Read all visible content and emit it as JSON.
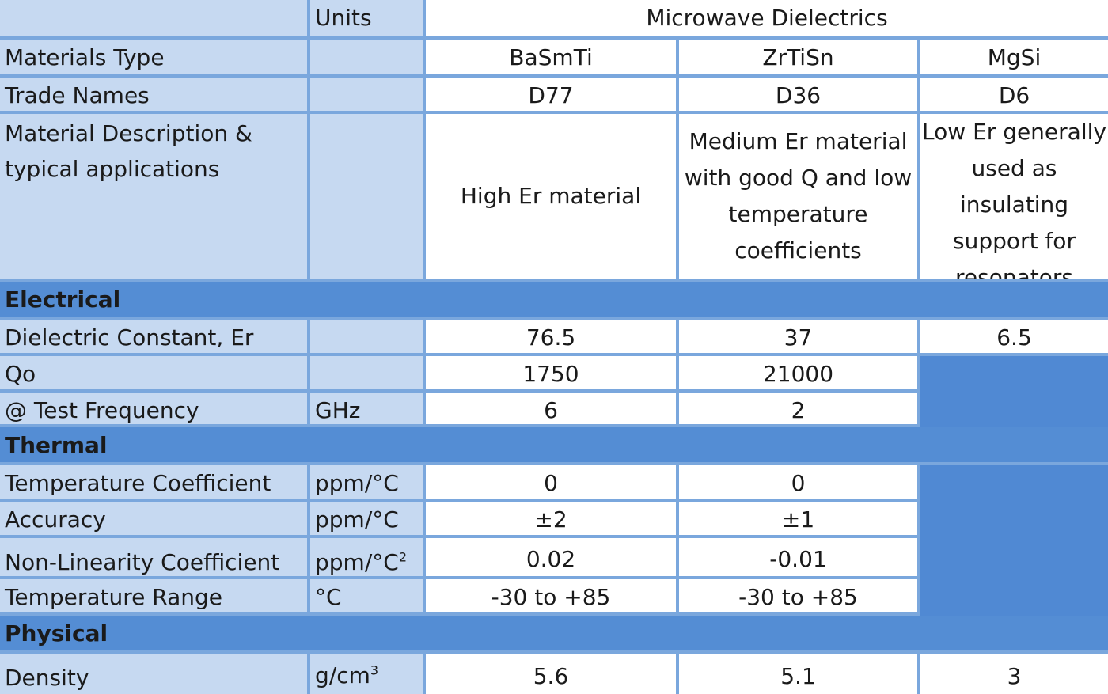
{
  "header": {
    "units_label": "Units",
    "group_title": "Microwave Dielectrics"
  },
  "rows": {
    "materials_type": {
      "label": "Materials Type",
      "values": [
        "BaSmTi",
        "ZrTiSn",
        "MgSi"
      ]
    },
    "trade_names": {
      "label": "Trade Names",
      "values": [
        "D77",
        "D36",
        "D6"
      ]
    },
    "description": {
      "label": "Material Description & typical applications",
      "values": [
        "High Er material",
        "Medium Er material with good Q and low temperature coefficients",
        "Low Er generally used as insulating support for resonators"
      ]
    }
  },
  "sections": {
    "electrical": "Electrical",
    "thermal": "Thermal",
    "physical": "Physical"
  },
  "electrical": {
    "dielectric_constant": {
      "label": "Dielectric Constant, Er",
      "unit": "",
      "values": [
        "76.5",
        "37",
        "6.5"
      ]
    },
    "qo": {
      "label": "Qo",
      "unit": "",
      "values": [
        "1750",
        "21000"
      ]
    },
    "test_frequency": {
      "label": "@ Test Frequency",
      "unit": "GHz",
      "values": [
        "6",
        "2"
      ]
    }
  },
  "thermal": {
    "temp_coefficient": {
      "label": "Temperature Coefficient",
      "unit": "ppm/°C",
      "values": [
        "0",
        "0"
      ]
    },
    "accuracy": {
      "label": "Accuracy",
      "unit": "ppm/°C",
      "values": [
        "±2",
        "±1"
      ]
    },
    "non_linearity": {
      "label": "Non-Linearity Coefficient",
      "unit_base": "ppm/°C",
      "unit_sup": "2",
      "values": [
        "0.02",
        "-0.01"
      ]
    },
    "temp_range": {
      "label": "Temperature Range",
      "unit": "°C",
      "values": [
        "-30 to +85",
        "-30 to +85"
      ]
    }
  },
  "physical": {
    "density": {
      "label": "Density",
      "unit_base": "g/cm",
      "unit_sup": "3",
      "values": [
        "5.6",
        "5.1",
        "3"
      ]
    }
  }
}
